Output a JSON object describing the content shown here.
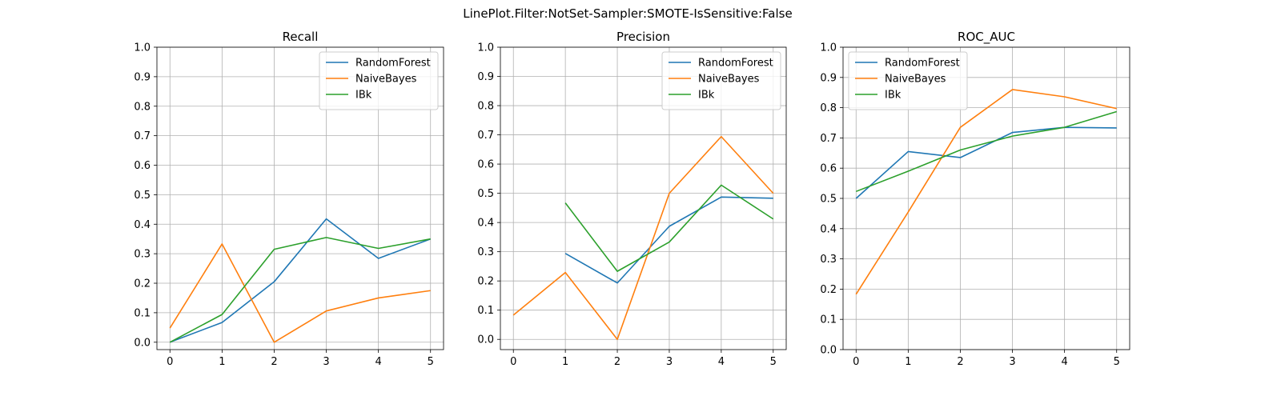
{
  "figure": {
    "suptitle": "LinePlot.Filter:NotSet-Sampler:SMOTE-IsSensitive:False"
  },
  "colors": {
    "RandomForest": "#1f77b4",
    "NaiveBayes": "#ff7f0e",
    "IBk": "#2ca02c"
  },
  "chart_data": [
    {
      "type": "line",
      "title": "Recall",
      "xlabel": "",
      "ylabel": "",
      "xlim": [
        -0.25,
        5.25
      ],
      "ylim": [
        -0.025,
        1.0
      ],
      "xticks": [
        0,
        1,
        2,
        3,
        4,
        5
      ],
      "yticks": [
        0.0,
        0.1,
        0.2,
        0.3,
        0.4,
        0.5,
        0.6,
        0.7,
        0.8,
        0.9,
        1.0
      ],
      "ytick_labels": [
        "0.0",
        "0.1",
        "0.2",
        "0.3",
        "0.4",
        "0.5",
        "0.6",
        "0.7",
        "0.8",
        "0.9",
        "1.0"
      ],
      "grid": true,
      "legend_position": "top-right",
      "series": [
        {
          "name": "RandomForest",
          "x": [
            0,
            1,
            2,
            3,
            4,
            5
          ],
          "values": [
            0.0,
            0.067,
            0.205,
            0.418,
            0.284,
            0.35
          ]
        },
        {
          "name": "NaiveBayes",
          "x": [
            0,
            1,
            2,
            3,
            4,
            5
          ],
          "values": [
            0.048,
            0.333,
            0.0,
            0.106,
            0.15,
            0.175
          ]
        },
        {
          "name": "IBk",
          "x": [
            0,
            1,
            2,
            3,
            4,
            5
          ],
          "values": [
            0.0,
            0.094,
            0.315,
            0.355,
            0.318,
            0.35
          ]
        }
      ]
    },
    {
      "type": "line",
      "title": "Precision",
      "xlabel": "",
      "ylabel": "",
      "xlim": [
        -0.25,
        5.25
      ],
      "ylim": [
        -0.035,
        1.0
      ],
      "xticks": [
        0,
        1,
        2,
        3,
        4,
        5
      ],
      "yticks": [
        0.0,
        0.1,
        0.2,
        0.3,
        0.4,
        0.5,
        0.6,
        0.7,
        0.8,
        0.9,
        1.0
      ],
      "ytick_labels": [
        "0.0",
        "0.1",
        "0.2",
        "0.3",
        "0.4",
        "0.5",
        "0.6",
        "0.7",
        "0.8",
        "0.9",
        "1.0"
      ],
      "grid": true,
      "legend_position": "top-right",
      "series": [
        {
          "name": "RandomForest",
          "x": [
            1,
            2,
            3,
            4,
            5
          ],
          "values": [
            0.294,
            0.193,
            0.387,
            0.487,
            0.483
          ]
        },
        {
          "name": "NaiveBayes",
          "x": [
            0,
            1,
            2,
            3,
            4,
            5
          ],
          "values": [
            0.083,
            0.229,
            0.0,
            0.5,
            0.694,
            0.5
          ]
        },
        {
          "name": "IBk",
          "x": [
            1,
            2,
            3,
            4,
            5
          ],
          "values": [
            0.467,
            0.233,
            0.333,
            0.528,
            0.412
          ]
        }
      ]
    },
    {
      "type": "line",
      "title": "ROC_AUC",
      "xlabel": "",
      "ylabel": "",
      "xlim": [
        -0.25,
        5.25
      ],
      "ylim": [
        0.0,
        1.0
      ],
      "xticks": [
        0,
        1,
        2,
        3,
        4,
        5
      ],
      "yticks": [
        0.0,
        0.1,
        0.2,
        0.3,
        0.4,
        0.5,
        0.6,
        0.7,
        0.8,
        0.9,
        1.0
      ],
      "ytick_labels": [
        "0.0",
        "0.1",
        "0.2",
        "0.3",
        "0.4",
        "0.5",
        "0.6",
        "0.7",
        "0.8",
        "0.9",
        "1.0"
      ],
      "grid": true,
      "legend_position": "top-left",
      "series": [
        {
          "name": "RandomForest",
          "x": [
            0,
            1,
            2,
            3,
            4,
            5
          ],
          "values": [
            0.5,
            0.655,
            0.635,
            0.718,
            0.735,
            0.733
          ]
        },
        {
          "name": "NaiveBayes",
          "x": [
            0,
            1,
            2,
            3,
            4,
            5
          ],
          "values": [
            0.183,
            0.455,
            0.735,
            0.86,
            0.836,
            0.797
          ]
        },
        {
          "name": "IBk",
          "x": [
            0,
            1,
            2,
            3,
            4,
            5
          ],
          "values": [
            0.523,
            0.59,
            0.66,
            0.706,
            0.735,
            0.787
          ]
        }
      ]
    }
  ]
}
